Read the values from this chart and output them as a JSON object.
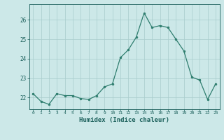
{
  "x": [
    0,
    1,
    2,
    3,
    4,
    5,
    6,
    7,
    8,
    9,
    10,
    11,
    12,
    13,
    14,
    15,
    16,
    17,
    18,
    19,
    20,
    21,
    22,
    23
  ],
  "y": [
    22.2,
    21.8,
    21.65,
    22.2,
    22.1,
    22.1,
    21.95,
    21.9,
    22.1,
    22.55,
    22.7,
    24.05,
    24.45,
    25.1,
    26.35,
    25.6,
    25.7,
    25.6,
    25.0,
    24.4,
    23.05,
    22.9,
    21.9,
    22.7
  ],
  "line_color": "#2e7d6e",
  "marker_color": "#2e7d6e",
  "bg_color": "#cce8e8",
  "grid_color": "#a8cccc",
  "xlabel": "Humidex (Indice chaleur)",
  "xlabel_color": "#1a5f5a",
  "tick_color": "#1a5f5a",
  "ylim": [
    21.4,
    26.8
  ],
  "yticks": [
    22,
    23,
    24,
    25,
    26
  ],
  "xticks": [
    0,
    1,
    2,
    3,
    4,
    5,
    6,
    7,
    8,
    9,
    10,
    11,
    12,
    13,
    14,
    15,
    16,
    17,
    18,
    19,
    20,
    21,
    22,
    23
  ]
}
